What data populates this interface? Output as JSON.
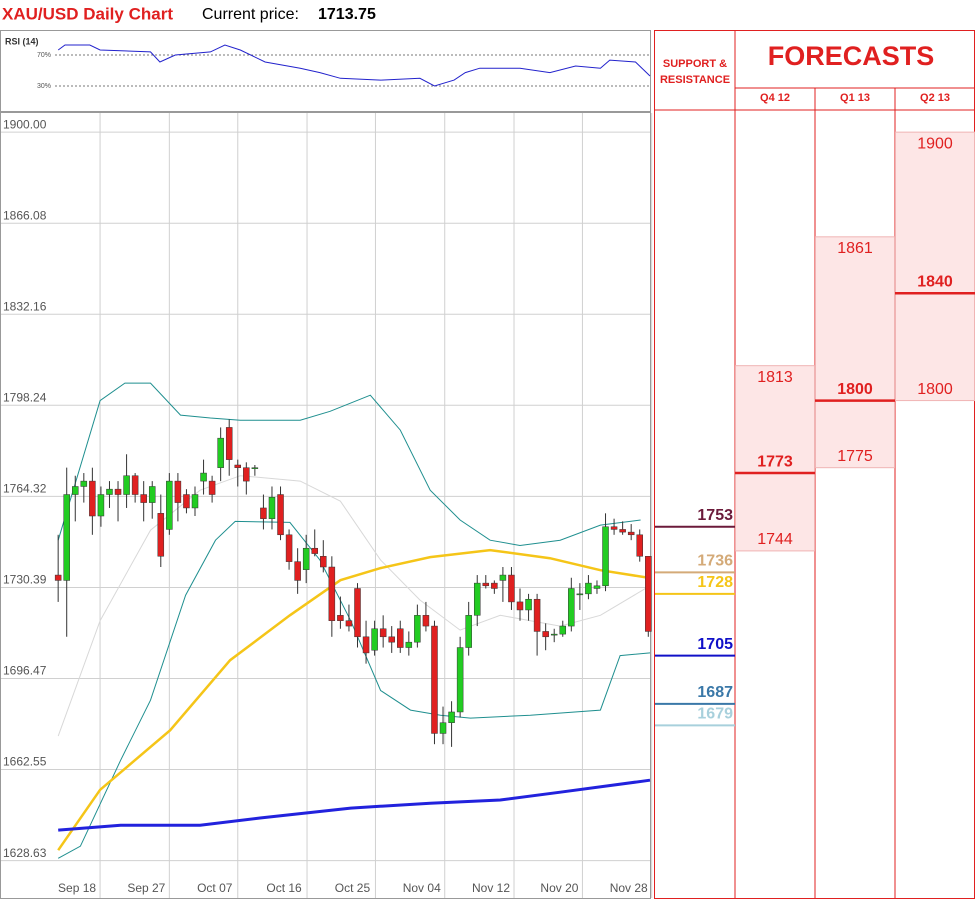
{
  "chart_data": {
    "type": "candlestick",
    "title": "XAU/USD Daily Chart",
    "price_label": "Current price:",
    "current_price": 1713.75,
    "up_color": "#22cc22",
    "down_color": "#e02020",
    "xlim": [
      -6.8,
      69.2
    ],
    "xticks": [
      {
        "value": 4.9,
        "label": "Sep 18"
      },
      {
        "value": 13.0,
        "label": "Sep 27"
      },
      {
        "value": 21.0,
        "label": "Oct 07"
      },
      {
        "value": 29.1,
        "label": "Oct 16"
      },
      {
        "value": 37.1,
        "label": "Oct 25"
      },
      {
        "value": 45.2,
        "label": "Nov 04"
      },
      {
        "value": 53.3,
        "label": "Nov 12"
      },
      {
        "value": 61.3,
        "label": "Nov 20"
      },
      {
        "value": 69.4,
        "label": "Nov 28"
      }
    ],
    "ylim": [
      1614.7,
      1907.5
    ],
    "yticks": [
      {
        "value": 1900,
        "label": "1900.00"
      },
      1866.08,
      1832.16,
      1798.24,
      1764.32,
      1730.39,
      1696.47,
      1662.55,
      1628.63
    ],
    "grid": true,
    "candles": {
      "open": [
        1735,
        1733,
        1765,
        1768,
        1770,
        1757,
        1765,
        1767,
        1765,
        1772,
        1765,
        1762,
        1758,
        1752,
        1770,
        1765,
        1760,
        1770,
        1770,
        1775,
        1790,
        1776,
        1775,
        1775,
        1760,
        1756,
        1765,
        1750,
        1740,
        1737,
        1745,
        1742,
        1738,
        1720,
        1718,
        1730,
        1712,
        1707,
        1715,
        1712,
        1715,
        1708,
        1710,
        1720,
        1716,
        1676,
        1680,
        1684,
        1708,
        1720,
        1732,
        1732,
        1733,
        1735,
        1725,
        1722,
        1726,
        1714,
        1713,
        1713,
        1716,
        1728,
        1728,
        1730,
        1731,
        1753,
        1752,
        1751,
        1750,
        1742
      ],
      "high": [
        1750,
        1775,
        1772,
        1773,
        1775,
        1768,
        1770,
        1770,
        1780,
        1773,
        1770,
        1770,
        1765,
        1773,
        1773,
        1767,
        1768,
        1778,
        1772,
        1790,
        1793,
        1778,
        1777,
        1776,
        1765,
        1768,
        1768,
        1752,
        1745,
        1750,
        1752,
        1748,
        1742,
        1727,
        1724,
        1732,
        1718,
        1718,
        1720,
        1716,
        1718,
        1714,
        1724,
        1725,
        1718,
        1686,
        1688,
        1712,
        1725,
        1735,
        1735,
        1733,
        1738,
        1738,
        1730,
        1728,
        1728,
        1717,
        1715,
        1718,
        1734,
        1732,
        1735,
        1733,
        1758,
        1756,
        1755,
        1754,
        1752,
        1742
      ],
      "low": [
        1725,
        1712,
        1755,
        1762,
        1750,
        1753,
        1760,
        1755,
        1760,
        1762,
        1755,
        1756,
        1738,
        1750,
        1755,
        1758,
        1757,
        1765,
        1762,
        1770,
        1772,
        1768,
        1765,
        1772,
        1752,
        1752,
        1748,
        1737,
        1728,
        1732,
        1742,
        1736,
        1712,
        1715,
        1714,
        1708,
        1702,
        1705,
        1708,
        1706,
        1706,
        1705,
        1708,
        1714,
        1672,
        1672,
        1671,
        1682,
        1705,
        1716,
        1730,
        1728,
        1725,
        1722,
        1718,
        1718,
        1705,
        1707,
        1710,
        1712,
        1714,
        1722,
        1726,
        1728,
        1729,
        1750,
        1750,
        1748,
        1740,
        1712
      ],
      "close": [
        1733,
        1765,
        1768,
        1770,
        1757,
        1765,
        1767,
        1765,
        1772,
        1765,
        1762,
        1768,
        1742,
        1770,
        1762,
        1760,
        1765,
        1773,
        1765,
        1786,
        1778,
        1775,
        1770,
        1775,
        1756,
        1764,
        1750,
        1740,
        1733,
        1745,
        1743,
        1738,
        1718,
        1718,
        1716,
        1712,
        1706,
        1715,
        1712,
        1710,
        1708,
        1710,
        1720,
        1716,
        1676,
        1680,
        1684,
        1708,
        1720,
        1732,
        1731,
        1730,
        1735,
        1725,
        1722,
        1726,
        1714,
        1712,
        1713,
        1716,
        1730,
        1728,
        1732,
        1731,
        1753,
        1752,
        1751,
        1750,
        1742,
        1714
      ]
    },
    "overlays": [
      {
        "color": "#d8d8d8",
        "width": 1,
        "x": [
          0,
          4.9,
          10.8,
          16.6,
          21.3,
          28.3,
          33,
          37.7,
          42.3,
          47,
          51.7,
          58.7,
          63.4,
          69.2
        ],
        "values": [
          1675,
          1718,
          1751.7,
          1766.6,
          1772,
          1770,
          1762.5,
          1740.6,
          1725.7,
          1714.5,
          1720,
          1716,
          1720,
          1731
        ]
      },
      {
        "color": "#1f8f8f",
        "width": 1,
        "x": [
          0,
          4.9,
          7.8,
          10.8,
          14.3,
          17.8,
          21.3,
          28.3,
          31.8,
          36.5,
          40,
          43.5,
          47,
          50.5,
          54,
          58.7,
          63.4,
          68.1
        ],
        "values": [
          1748,
          1800,
          1806.5,
          1806.5,
          1794.6,
          1793.5,
          1792.7,
          1792.7,
          1796,
          1802,
          1789,
          1766.6,
          1755.5,
          1748,
          1746,
          1748,
          1753.6,
          1755.5
        ]
      },
      {
        "color": "#1f8f8f",
        "width": 1,
        "x": [
          0,
          2.6,
          7.3,
          10.8,
          14.9,
          18.4,
          20.7,
          27.1,
          30.6,
          34.2,
          37.7,
          41.2,
          44.7,
          48.2,
          55.2,
          63.4,
          65.7,
          69.2
        ],
        "values": [
          1629.5,
          1634,
          1666,
          1688.4,
          1727.5,
          1748,
          1755,
          1754.6,
          1740.6,
          1718,
          1692,
          1684.7,
          1682.8,
          1681.7,
          1682.8,
          1684.7,
          1705,
          1706
        ]
      },
      {
        "color": "#f5c518",
        "width": 2.5,
        "x": [
          0,
          4.9,
          13.1,
          20.1,
          27.1,
          33,
          37.7,
          43.5,
          50.5,
          57.5,
          63.4,
          69.2
        ],
        "values": [
          1632.5,
          1655,
          1677.2,
          1703.3,
          1720,
          1733.1,
          1737.6,
          1741.7,
          1744.3,
          1741.3,
          1736.8,
          1733.9
        ]
      },
      {
        "color": "#2222dd",
        "width": 3,
        "x": [
          0,
          7.3,
          16.6,
          23.6,
          34.2,
          43.5,
          51.7,
          58.7,
          69.2
        ],
        "values": [
          1640,
          1641.8,
          1641.8,
          1644.5,
          1648.2,
          1650,
          1651.2,
          1654.1,
          1658.6
        ]
      }
    ],
    "rsi": {
      "label": "RSI (14)",
      "color": "#2222cc",
      "ylim": [
        -3.5,
        102.3
      ],
      "levels": [
        {
          "value": 70,
          "label": "70%"
        },
        {
          "value": 30,
          "label": "30%"
        }
      ],
      "x": [
        0,
        0.8,
        3.7,
        4.9,
        10.8,
        11.9,
        13.7,
        17.8,
        19.5,
        21.3,
        24.2,
        28.3,
        30.6,
        33,
        37.7,
        42.3,
        44,
        46.3,
        47.6,
        49.3,
        54,
        57.5,
        60.5,
        63.4,
        64.5,
        67.5,
        69.2
      ],
      "values": [
        76.5,
        83,
        83,
        76.5,
        74,
        61,
        70,
        74,
        83,
        76.5,
        61,
        53,
        47.4,
        40,
        37.7,
        40,
        30,
        37.7,
        47.4,
        53,
        53,
        47.4,
        55.8,
        53,
        63.5,
        61,
        43
      ]
    },
    "panel": {
      "support_title": [
        "SUPPORT &",
        "RESISTANCE"
      ],
      "forecast_title": "FORECASTS",
      "color": "#e02020",
      "levels": [
        {
          "value": 1753,
          "color": "#6b1a3a"
        },
        {
          "value": 1736,
          "color": "#d4aa78"
        },
        {
          "value": 1728,
          "color": "#f5c518"
        },
        {
          "value": 1705,
          "color": "#1010c8"
        },
        {
          "value": 1687,
          "color": "#3a78a8"
        },
        {
          "value": 1679,
          "color": "#a8d0dc"
        }
      ],
      "quarters": [
        {
          "name": "Q4 12",
          "high": 1813,
          "mid": 1773,
          "low": 1744
        },
        {
          "name": "Q1 13",
          "high": 1861,
          "mid": 1800,
          "low": 1775
        },
        {
          "name": "Q2 13",
          "high": 1900,
          "mid": 1840,
          "low": 1800
        }
      ]
    }
  }
}
